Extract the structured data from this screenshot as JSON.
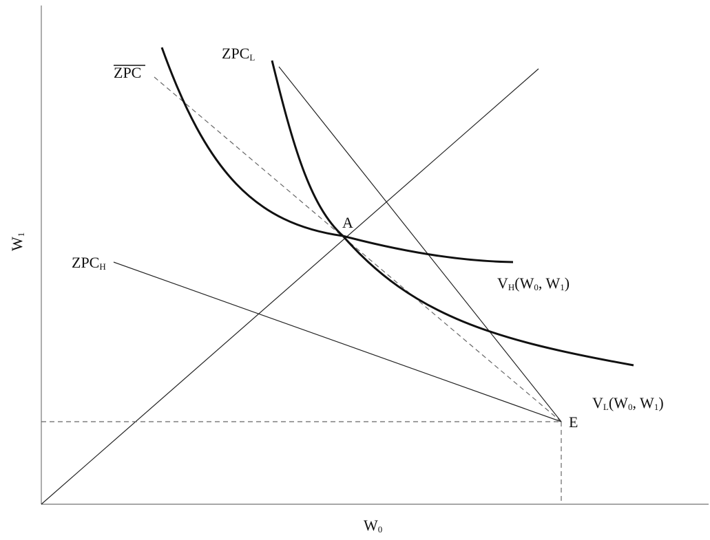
{
  "labels": {
    "x_axis": {
      "main": "W",
      "sub": "0"
    },
    "y_axis": {
      "main": "W",
      "sub": "1"
    },
    "zpc_bar": "ZPC",
    "zpc_l": {
      "main": "ZPC",
      "sub": "L"
    },
    "zpc_h": {
      "main": "ZPC",
      "sub": "H"
    },
    "point_a": "A",
    "point_e": "E",
    "v_h": {
      "main": "V",
      "sub": "H",
      "args": "(W",
      "arg1_sub": "0",
      "sep": ", W",
      "arg2_sub": "1",
      "close": ")"
    },
    "v_l": {
      "main": "V",
      "sub": "L",
      "args": "(W",
      "arg1_sub": "0",
      "sep": ", W",
      "arg2_sub": "1",
      "close": ")"
    }
  },
  "colors": {
    "ink": "#111111",
    "axis": "#8a8a8a",
    "dashed": "#666666"
  }
}
